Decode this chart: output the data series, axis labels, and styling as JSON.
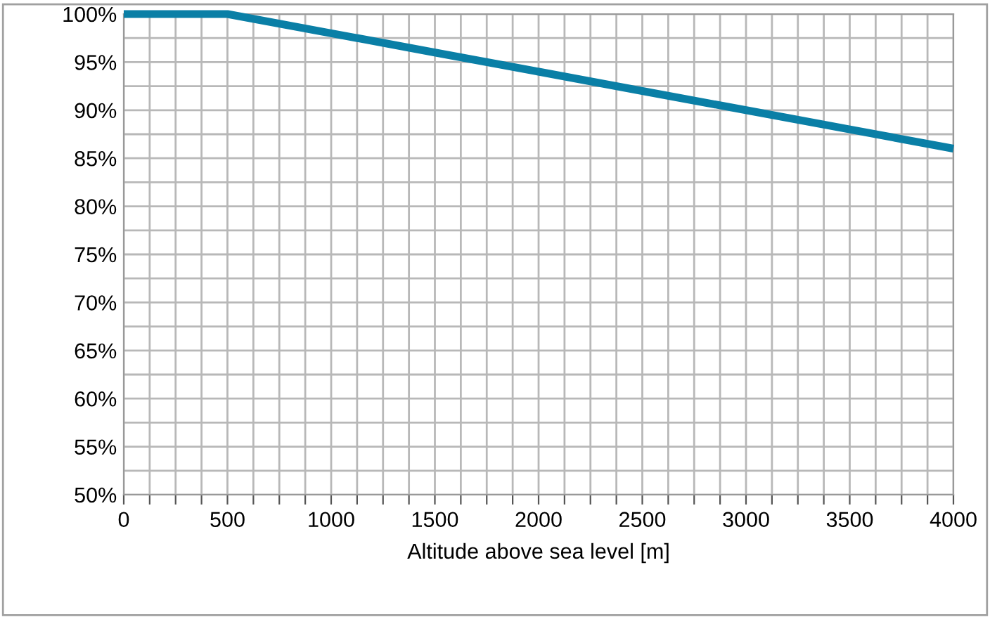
{
  "chart_data": {
    "type": "line",
    "xlabel": "Altitude above sea level [m]",
    "x": [
      0,
      500,
      1000,
      1500,
      2000,
      2500,
      3000,
      3500,
      4000
    ],
    "series": [
      {
        "color": "#0a7fa6",
        "values": [
          100,
          100,
          98,
          96,
          94,
          92,
          90,
          88,
          86
        ]
      }
    ],
    "xlim": [
      0,
      4000
    ],
    "xticks": [
      0,
      {
        "value": 125,
        "label": null
      },
      {
        "value": 250,
        "label": null
      },
      {
        "value": 375,
        "label": null
      },
      500,
      {
        "value": 625,
        "label": null
      },
      {
        "value": 750,
        "label": null
      },
      {
        "value": 875,
        "label": null
      },
      1000,
      {
        "value": 1125,
        "label": null
      },
      {
        "value": 1250,
        "label": null
      },
      {
        "value": 1375,
        "label": null
      },
      1500,
      {
        "value": 1625,
        "label": null
      },
      {
        "value": 1750,
        "label": null
      },
      {
        "value": 1875,
        "label": null
      },
      2000,
      {
        "value": 2125,
        "label": null
      },
      {
        "value": 2250,
        "label": null
      },
      {
        "value": 2375,
        "label": null
      },
      2500,
      {
        "value": 2625,
        "label": null
      },
      {
        "value": 2750,
        "label": null
      },
      {
        "value": 2875,
        "label": null
      },
      3000,
      {
        "value": 3125,
        "label": null
      },
      {
        "value": 3250,
        "label": null
      },
      {
        "value": 3375,
        "label": null
      },
      3500,
      {
        "value": 3625,
        "label": null
      },
      {
        "value": 3750,
        "label": null
      },
      {
        "value": 3875,
        "label": null
      },
      4000
    ],
    "ylim": [
      50,
      100
    ],
    "yticks": [
      {
        "value": 50,
        "label": "50%"
      },
      {
        "value": 52.5,
        "label": null
      },
      {
        "value": 55,
        "label": "55%"
      },
      {
        "value": 57.5,
        "label": null
      },
      {
        "value": 60,
        "label": "60%"
      },
      {
        "value": 62.5,
        "label": null
      },
      {
        "value": 65,
        "label": "65%"
      },
      {
        "value": 67.5,
        "label": null
      },
      {
        "value": 70,
        "label": "70%"
      },
      {
        "value": 72.5,
        "label": null
      },
      {
        "value": 75,
        "label": "75%"
      },
      {
        "value": 77.5,
        "label": null
      },
      {
        "value": 80,
        "label": "80%"
      },
      {
        "value": 82.5,
        "label": null
      },
      {
        "value": 85,
        "label": "85%"
      },
      {
        "value": 87.5,
        "label": null
      },
      {
        "value": 90,
        "label": "90%"
      },
      {
        "value": 92.5,
        "label": null
      },
      {
        "value": 95,
        "label": "95%"
      },
      {
        "value": 97.5,
        "label": null
      },
      {
        "value": 100,
        "label": "100%"
      }
    ],
    "grid": true,
    "marker": "none",
    "line_style": "solid",
    "legend": false
  }
}
